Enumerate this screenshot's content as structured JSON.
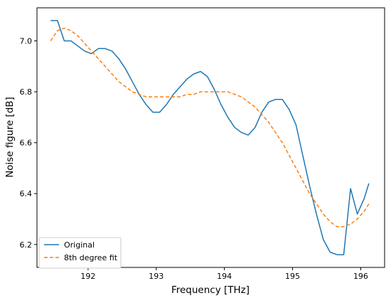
{
  "chart_data": {
    "type": "line",
    "title": "",
    "xlabel": "Frequency [THz]",
    "ylabel": "Noise figure [dB]",
    "xlim": [
      191.25,
      196.35
    ],
    "ylim": [
      6.11,
      7.13
    ],
    "xticks": [
      192,
      193,
      194,
      195,
      196
    ],
    "xtick_labels": [
      "192",
      "193",
      "194",
      "195",
      "196"
    ],
    "yticks": [
      6.2,
      6.4,
      6.6,
      6.8,
      7.0
    ],
    "ytick_labels": [
      "6.2",
      "6.4",
      "6.6",
      "6.8",
      "7.0"
    ],
    "grid": false,
    "legend_position": "lower-left",
    "colors": {
      "original": "#1f77b4",
      "fit": "#ff7f0e"
    },
    "series": [
      {
        "name": "Original",
        "style": "solid",
        "x": [
          191.45,
          191.55,
          191.65,
          191.75,
          191.85,
          191.95,
          192.05,
          192.15,
          192.25,
          192.35,
          192.45,
          192.55,
          192.65,
          192.75,
          192.85,
          192.95,
          193.05,
          193.15,
          193.25,
          193.35,
          193.45,
          193.55,
          193.65,
          193.75,
          193.85,
          193.95,
          194.05,
          194.15,
          194.25,
          194.35,
          194.45,
          194.55,
          194.65,
          194.75,
          194.85,
          194.95,
          195.05,
          195.15,
          195.25,
          195.35,
          195.45,
          195.55,
          195.65,
          195.75,
          195.85,
          195.95,
          196.05,
          196.12
        ],
        "values": [
          7.08,
          7.08,
          7.0,
          7.0,
          6.98,
          6.96,
          6.95,
          6.97,
          6.97,
          6.96,
          6.93,
          6.89,
          6.84,
          6.79,
          6.75,
          6.72,
          6.72,
          6.75,
          6.79,
          6.82,
          6.85,
          6.87,
          6.88,
          6.86,
          6.81,
          6.75,
          6.7,
          6.66,
          6.64,
          6.63,
          6.66,
          6.72,
          6.76,
          6.77,
          6.77,
          6.73,
          6.67,
          6.55,
          6.43,
          6.32,
          6.22,
          6.17,
          6.16,
          6.16,
          6.42,
          6.32,
          6.38,
          6.44
        ]
      },
      {
        "name": "8th degree fit",
        "style": "dashed",
        "x": [
          191.45,
          191.55,
          191.65,
          191.75,
          191.85,
          191.95,
          192.05,
          192.15,
          192.25,
          192.35,
          192.45,
          192.55,
          192.65,
          192.75,
          192.85,
          192.95,
          193.05,
          193.15,
          193.25,
          193.35,
          193.45,
          193.55,
          193.65,
          193.75,
          193.85,
          193.95,
          194.05,
          194.15,
          194.25,
          194.35,
          194.45,
          194.55,
          194.65,
          194.75,
          194.85,
          194.95,
          195.05,
          195.15,
          195.25,
          195.35,
          195.45,
          195.55,
          195.65,
          195.75,
          195.85,
          195.95,
          196.05,
          196.12
        ],
        "values": [
          7.0,
          7.04,
          7.05,
          7.04,
          7.02,
          6.99,
          6.96,
          6.93,
          6.9,
          6.87,
          6.84,
          6.82,
          6.8,
          6.79,
          6.78,
          6.78,
          6.78,
          6.78,
          6.78,
          6.78,
          6.79,
          6.79,
          6.8,
          6.8,
          6.8,
          6.8,
          6.8,
          6.79,
          6.78,
          6.76,
          6.74,
          6.71,
          6.68,
          6.64,
          6.6,
          6.55,
          6.5,
          6.45,
          6.4,
          6.36,
          6.32,
          6.29,
          6.27,
          6.27,
          6.28,
          6.3,
          6.33,
          6.36
        ]
      }
    ]
  }
}
